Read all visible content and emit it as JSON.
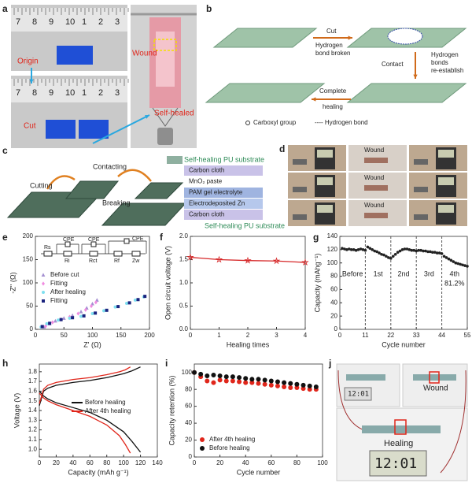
{
  "panel_labels": [
    "a",
    "b",
    "c",
    "d",
    "e",
    "f",
    "g",
    "h",
    "i",
    "j"
  ],
  "panel_a": {
    "ruler": [
      "7",
      "8",
      "9",
      "10",
      "1",
      "2",
      "3"
    ],
    "origin": "Origin",
    "cut": "Cut",
    "wound": "Wound",
    "self_healed": "Self-healed"
  },
  "panel_b": {
    "cut": "Cut",
    "broken": [
      "Hydrogen",
      "bond broken"
    ],
    "contact": "Contact",
    "reestablish": [
      "Hydrogen",
      "bonds",
      "re-establish"
    ],
    "complete": [
      "Complete",
      "healing"
    ],
    "legend": [
      "Carboxyl group",
      "---- Hydrogen bond"
    ]
  },
  "panel_c": {
    "cutting": "Cutting",
    "contacting": "Contacting",
    "breaking": "Breaking",
    "top": "Self-healing PU substrate",
    "layers": [
      "Carbon cloth",
      "MnO₂ paste",
      "PAM gel electrolyte",
      "Electrodeposited Zn",
      "Carbon cloth"
    ],
    "bottom": "Self-healing PU substrate"
  },
  "panel_d": {
    "wound": "Wound"
  },
  "panel_j": {
    "wound": "Wound",
    "healing": "Healing",
    "display": "12:01"
  },
  "chart_data": [
    {
      "type": "scatter",
      "xlabel": "Z' (Ω)",
      "ylabel": "-Z'' (Ω)",
      "xlim": [
        0,
        200
      ],
      "xticks": [
        0,
        50,
        100,
        150,
        200
      ],
      "ylim": [
        0,
        200
      ],
      "yticks": [
        0,
        50,
        100,
        150,
        200
      ],
      "legend": "center left",
      "inset_labels": [
        "Rs",
        "CPE",
        "Ri",
        "CPE",
        "Rct",
        "CPE",
        "Rf",
        "Zw"
      ],
      "series": [
        {
          "name": "Before cut",
          "color": "#a48fd1",
          "marker": "triangle",
          "x": [
            15,
            25,
            35,
            50,
            65,
            80,
            90,
            100,
            108
          ],
          "values": [
            5,
            12,
            18,
            24,
            30,
            38,
            46,
            55,
            63
          ]
        },
        {
          "name": "Fitting",
          "color": "#f08ce0",
          "marker": "diamond",
          "x": [
            18,
            30,
            45,
            60,
            75,
            88,
            98,
            106
          ],
          "values": [
            7,
            15,
            21,
            27,
            34,
            42,
            50,
            58
          ]
        },
        {
          "name": "After healing",
          "color": "#7fe0f0",
          "marker": "circle",
          "x": [
            10,
            20,
            40,
            60,
            80,
            100,
            120,
            140,
            160,
            175,
            190
          ],
          "values": [
            5,
            12,
            20,
            24,
            28,
            34,
            40,
            48,
            56,
            63,
            70
          ]
        },
        {
          "name": "Fitting",
          "color": "#1a237e",
          "marker": "square",
          "x": [
            12,
            25,
            45,
            65,
            85,
            105,
            125,
            145,
            165,
            180,
            192
          ],
          "values": [
            6,
            13,
            21,
            25,
            29,
            35,
            41,
            49,
            57,
            64,
            71
          ]
        }
      ]
    },
    {
      "type": "line",
      "xlabel": "Healing times",
      "ylabel": "Open circuit voltage (V)",
      "xlim": [
        0,
        4
      ],
      "xticks": [
        0,
        1,
        2,
        3,
        4
      ],
      "ylim": [
        0,
        2
      ],
      "yticks": [
        {
          "value": 0,
          "label": "0.0"
        },
        0.5,
        {
          "value": 1,
          "label": "1.0"
        },
        1.5,
        {
          "value": 2,
          "label": "2.0"
        }
      ],
      "series": [
        {
          "name": "OCV",
          "color": "#d62728",
          "marker": "star",
          "x": [
            0,
            1,
            2,
            3,
            4
          ],
          "values": [
            1.55,
            1.5,
            1.48,
            1.47,
            1.44
          ]
        }
      ]
    },
    {
      "type": "scatter",
      "xlabel": "Cycle number",
      "ylabel": "Capacity (mAhg⁻¹)",
      "xlim": [
        0,
        55
      ],
      "xticks": [
        0,
        11,
        22,
        33,
        44,
        55
      ],
      "ylim": [
        0,
        140
      ],
      "yticks": [
        0,
        20,
        40,
        60,
        80,
        100,
        120,
        140
      ],
      "vlines": true,
      "annotations": [
        "Before",
        "1st",
        "2nd",
        "3rd",
        "4th",
        "81.2%"
      ],
      "series": [
        {
          "name": "Capacity",
          "color": "#222222",
          "marker": "circle",
          "x": [
            1,
            2,
            3,
            4,
            5,
            6,
            7,
            8,
            9,
            10,
            11,
            12,
            13,
            14,
            15,
            16,
            17,
            18,
            19,
            20,
            21,
            22,
            23,
            24,
            25,
            26,
            27,
            28,
            29,
            30,
            31,
            32,
            33,
            34,
            35,
            36,
            37,
            38,
            39,
            40,
            41,
            42,
            43,
            44,
            45,
            46,
            47,
            48,
            49,
            50,
            51,
            52,
            53,
            54,
            55
          ],
          "values": [
            122,
            121,
            120,
            121,
            120,
            120,
            119,
            120,
            121,
            120,
            119,
            124,
            122,
            120,
            118,
            117,
            115,
            113,
            112,
            110,
            108,
            107,
            110,
            113,
            116,
            118,
            120,
            121,
            121,
            120,
            119,
            119,
            118,
            119,
            119,
            118,
            118,
            117,
            117,
            116,
            116,
            115,
            115,
            114,
            110,
            108,
            106,
            104,
            102,
            100,
            99,
            98,
            97,
            96,
            95
          ]
        }
      ]
    },
    {
      "type": "line",
      "xlabel": "Capacity (mAh g⁻¹)",
      "ylabel": "Voltage (V)",
      "xlim": [
        0,
        140
      ],
      "xticks": [
        0,
        20,
        40,
        60,
        80,
        100,
        120,
        140
      ],
      "ylim": [
        0.92,
        1.88
      ],
      "yticks": [
        {
          "value": 1,
          "label": "1.0"
        },
        1.1,
        1.2,
        1.3,
        1.4,
        1.5,
        1.6,
        1.7,
        1.8
      ],
      "legend": "center",
      "series": [
        {
          "name": "Before healing",
          "color": "#111111",
          "x": [
            0,
            5,
            10,
            20,
            40,
            60,
            80,
            100,
            110,
            120,
            null,
            0,
            5,
            10,
            20,
            40,
            60,
            80,
            100,
            110,
            120
          ],
          "values": [
            1.45,
            1.6,
            1.63,
            1.66,
            1.69,
            1.71,
            1.74,
            1.78,
            1.81,
            1.85,
            null,
            1.6,
            1.55,
            1.52,
            1.48,
            1.43,
            1.38,
            1.3,
            1.18,
            1.08,
            0.97
          ]
        },
        {
          "name": "After 4th healing",
          "color": "#e0261b",
          "x": [
            0,
            5,
            10,
            20,
            40,
            60,
            80,
            95,
            102,
            108,
            null,
            0,
            5,
            10,
            20,
            40,
            60,
            80,
            95,
            102,
            108
          ],
          "values": [
            1.47,
            1.62,
            1.66,
            1.69,
            1.72,
            1.74,
            1.77,
            1.8,
            1.82,
            1.85,
            null,
            1.58,
            1.53,
            1.5,
            1.46,
            1.4,
            1.34,
            1.25,
            1.14,
            1.05,
            0.96
          ]
        }
      ]
    },
    {
      "type": "scatter",
      "xlabel": "Cycle number",
      "ylabel": "Capacity retention (%)",
      "xlim": [
        0,
        100
      ],
      "xticks": [
        0,
        20,
        40,
        60,
        80,
        100
      ],
      "ylim": [
        0,
        110
      ],
      "yticks": [
        0,
        20,
        40,
        60,
        80,
        100
      ],
      "legend": "lower left",
      "series": [
        {
          "name": "After 4th healing",
          "color": "#e0261b",
          "marker": "circle",
          "x": [
            0,
            5,
            10,
            15,
            20,
            25,
            30,
            35,
            40,
            45,
            50,
            55,
            60,
            65,
            70,
            75,
            80,
            85,
            90,
            95
          ],
          "values": [
            100,
            95,
            90,
            88,
            91,
            90,
            90,
            89,
            88,
            88,
            87,
            86,
            85,
            84,
            83,
            82,
            82,
            81,
            80,
            80
          ]
        },
        {
          "name": "Before healing",
          "color": "#111111",
          "marker": "circle",
          "x": [
            0,
            5,
            10,
            15,
            20,
            25,
            30,
            35,
            40,
            45,
            50,
            55,
            60,
            65,
            70,
            75,
            80,
            85,
            90,
            95
          ],
          "values": [
            100,
            98,
            96,
            97,
            96,
            95,
            95,
            94,
            93,
            92,
            92,
            91,
            90,
            89,
            88,
            87,
            86,
            85,
            84,
            83
          ]
        }
      ]
    }
  ]
}
